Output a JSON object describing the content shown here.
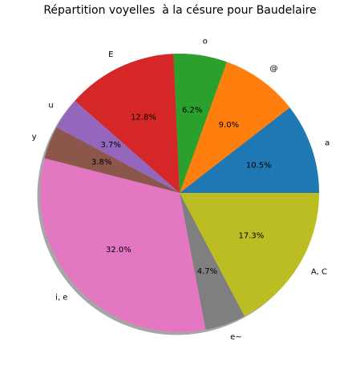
{
  "chart_data": {
    "type": "pie",
    "title": "Répartition voyelles  à la césure pour Baudelaire",
    "shadow": true,
    "start_angle_deg": 0,
    "direction": "counterclockwise",
    "slices": [
      {
        "label": "a",
        "value": 10.5,
        "display": "10.5%",
        "color": "#1f77b4"
      },
      {
        "label": "@",
        "value": 9.0,
        "display": "9.0%",
        "color": "#ff7f0e"
      },
      {
        "label": "o",
        "value": 6.2,
        "display": "6.2%",
        "color": "#2ca02c"
      },
      {
        "label": "E",
        "value": 12.8,
        "display": "12.8%",
        "color": "#d62728"
      },
      {
        "label": "u",
        "value": 3.7,
        "display": "3.7%",
        "color": "#9467bd"
      },
      {
        "label": "y",
        "value": 3.8,
        "display": "3.8%",
        "color": "#8c564b"
      },
      {
        "label": "i, e",
        "value": 32.0,
        "display": "32.0%",
        "color": "#e377c2"
      },
      {
        "label": "e~",
        "value": 4.7,
        "display": "4.7%",
        "color": "#7f7f7f"
      },
      {
        "label": "A, C",
        "value": 17.3,
        "display": "17.3%",
        "color": "#bcbd22"
      }
    ]
  }
}
